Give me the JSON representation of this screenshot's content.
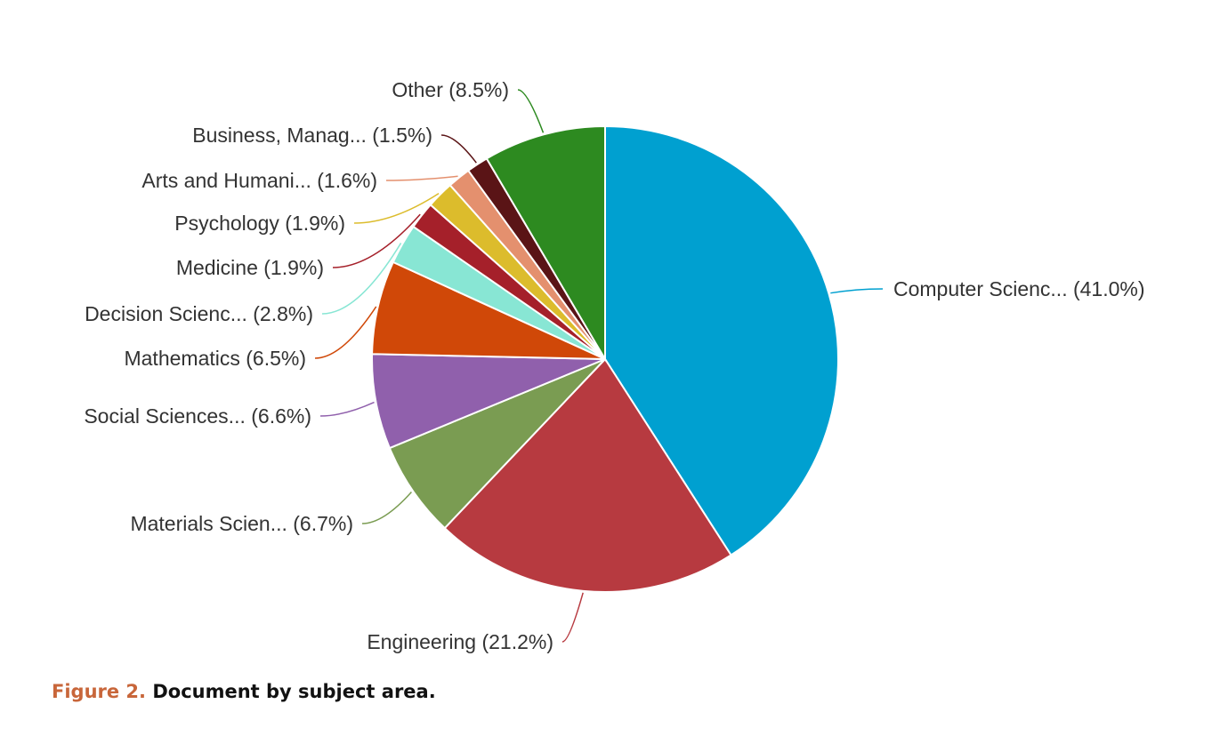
{
  "chart_data": {
    "type": "pie",
    "title": "",
    "slices": [
      {
        "label": "Computer Scienc... (41.0%)",
        "name": "Computer Scienc...",
        "value": 41.0,
        "color": "#00a0d0"
      },
      {
        "label": "Engineering (21.2%)",
        "name": "Engineering",
        "value": 21.2,
        "color": "#b73a40"
      },
      {
        "label": "Materials Scien... (6.7%)",
        "name": "Materials Scien...",
        "value": 6.7,
        "color": "#7a9c52"
      },
      {
        "label": "Social Sciences... (6.6%)",
        "name": "Social Sciences...",
        "value": 6.6,
        "color": "#9060ac"
      },
      {
        "label": "Mathematics (6.5%)",
        "name": "Mathematics",
        "value": 6.5,
        "color": "#d04808"
      },
      {
        "label": "Decision Scienc... (2.8%)",
        "name": "Decision Scienc...",
        "value": 2.8,
        "color": "#88e6d4"
      },
      {
        "label": "Medicine (1.9%)",
        "name": "Medicine",
        "value": 1.9,
        "color": "#a5202a"
      },
      {
        "label": "Psychology (1.9%)",
        "name": "Psychology",
        "value": 1.9,
        "color": "#dcbc2c"
      },
      {
        "label": "Arts and Humani... (1.6%)",
        "name": "Arts and Humani...",
        "value": 1.6,
        "color": "#e4906e"
      },
      {
        "label": "Business, Manag... (1.5%)",
        "name": "Business, Manag...",
        "value": 1.5,
        "color": "#5a1416"
      },
      {
        "label": "Other (8.5%)",
        "name": "Other",
        "value": 8.5,
        "color": "#2d8a20"
      }
    ]
  },
  "caption": {
    "figure_number": "Figure 2.",
    "text": "Document by subject area."
  }
}
